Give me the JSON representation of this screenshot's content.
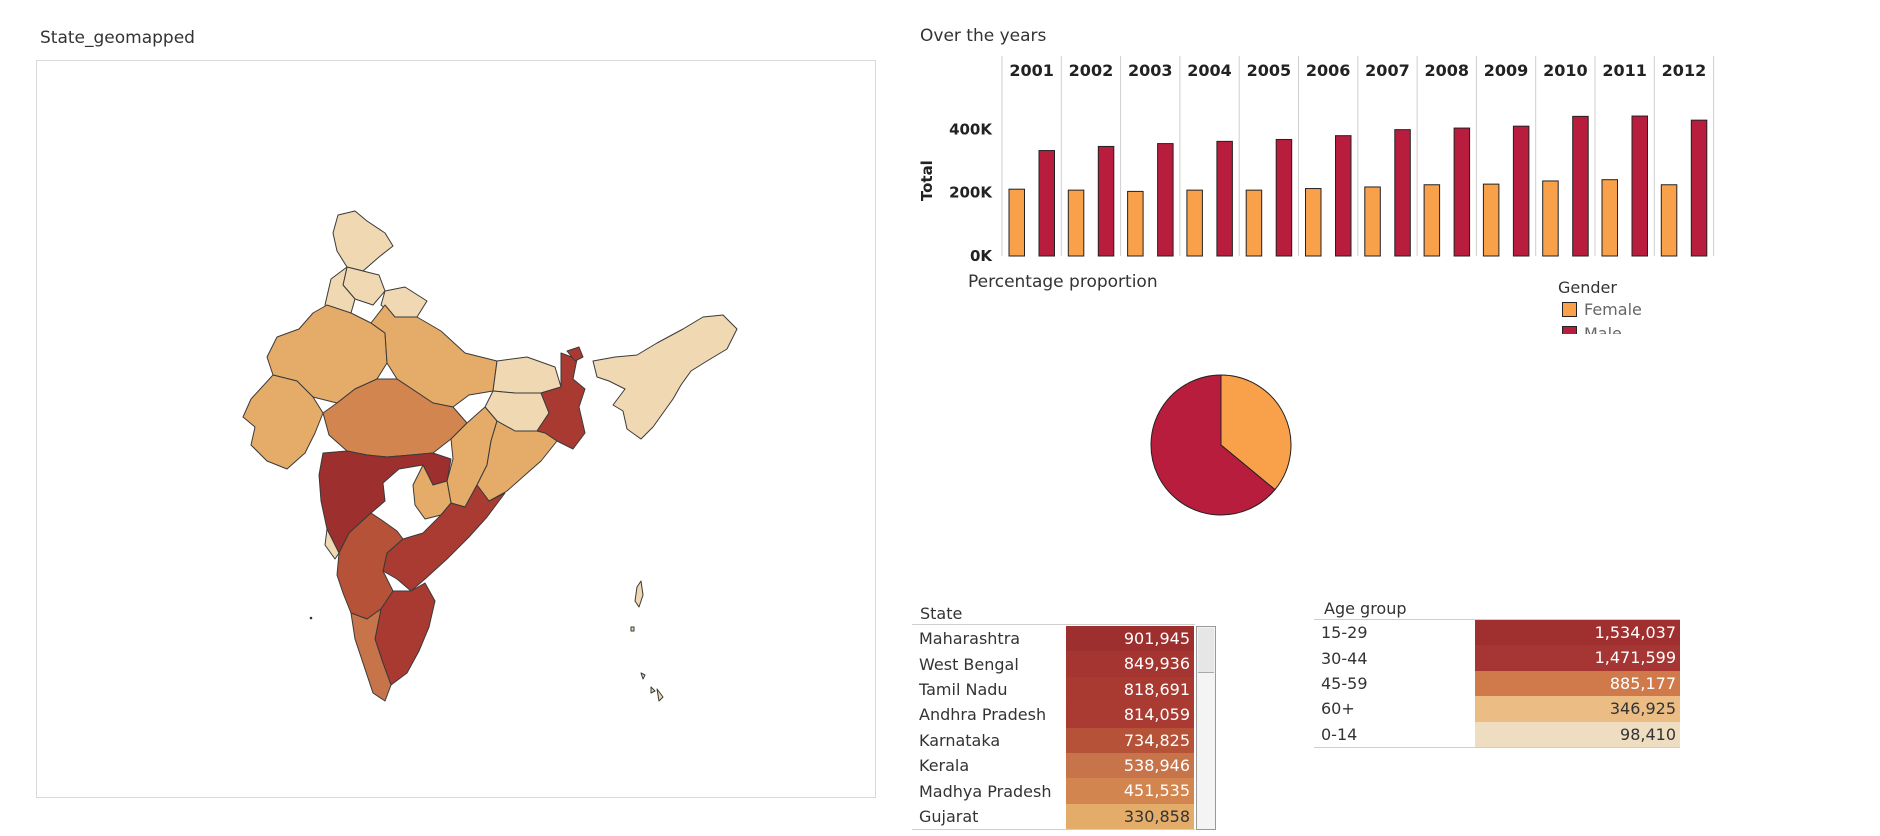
{
  "map": {
    "title": "State_geomapped"
  },
  "bar_section": {
    "title": "Over the years"
  },
  "pie_section": {
    "title": "Percentage proportion"
  },
  "legend": {
    "title": "Gender",
    "items": [
      {
        "label": "Female",
        "color": "#F9A04B"
      },
      {
        "label": "Male",
        "color": "#B81D3E"
      }
    ]
  },
  "state_table": {
    "header": "State",
    "rows": [
      {
        "label": "Maharashtra",
        "value": "901,945",
        "color": "#9E2F2F",
        "text_color": "#ffffff"
      },
      {
        "label": "West Bengal",
        "value": "849,936",
        "color": "#A53530",
        "text_color": "#ffffff"
      },
      {
        "label": "Tamil Nadu",
        "value": "818,691",
        "color": "#A83A32",
        "text_color": "#ffffff"
      },
      {
        "label": "Andhra Pradesh",
        "value": "814,059",
        "color": "#A93B32",
        "text_color": "#ffffff"
      },
      {
        "label": "Karnataka",
        "value": "734,825",
        "color": "#B55237",
        "text_color": "#ffffff"
      },
      {
        "label": "Kerala",
        "value": "538,946",
        "color": "#C7744A",
        "text_color": "#ffffff"
      },
      {
        "label": "Madhya Pradesh",
        "value": "451,535",
        "color": "#D2854F",
        "text_color": "#ffffff"
      },
      {
        "label": "Gujarat",
        "value": "330,858",
        "color": "#E3AC68",
        "text_color": "#333333"
      }
    ]
  },
  "age_table": {
    "header": "Age group",
    "rows": [
      {
        "label": "15-29",
        "value": "1,534,037",
        "color": "#A03030",
        "text_color": "#ffffff"
      },
      {
        "label": "30-44",
        "value": "1,471,599",
        "color": "#A63633",
        "text_color": "#ffffff"
      },
      {
        "label": "45-59",
        "value": "885,177",
        "color": "#D07A4B",
        "text_color": "#ffffff"
      },
      {
        "label": "60+",
        "value": "346,925",
        "color": "#EBBD84",
        "text_color": "#333333"
      },
      {
        "label": "0-14",
        "value": "98,410",
        "color": "#EFDDC2",
        "text_color": "#333333"
      }
    ]
  },
  "chart_data": [
    {
      "type": "bar",
      "ylabel": "Total",
      "ylim": [
        0,
        480000
      ],
      "yticks": [
        0,
        200000,
        400000
      ],
      "ytick_labels": [
        "0K",
        "200K",
        "400K"
      ],
      "categories": [
        "2001",
        "2002",
        "2003",
        "2004",
        "2005",
        "2006",
        "2007",
        "2008",
        "2009",
        "2010",
        "2011",
        "2012"
      ],
      "series": [
        {
          "name": "Female",
          "color": "#F9A04B",
          "values": [
            211000,
            208000,
            204000,
            208000,
            208000,
            213000,
            218000,
            225000,
            227000,
            237000,
            241000,
            225000
          ]
        },
        {
          "name": "Male",
          "color": "#B81D3E",
          "values": [
            333000,
            346000,
            355000,
            362000,
            368000,
            380000,
            399000,
            404000,
            410000,
            441000,
            442000,
            429000
          ]
        }
      ]
    },
    {
      "type": "pie",
      "slices": [
        {
          "label": "Female",
          "value": 36,
          "color": "#F9A04B"
        },
        {
          "label": "Male",
          "value": 64,
          "color": "#B81D3E"
        }
      ]
    }
  ]
}
